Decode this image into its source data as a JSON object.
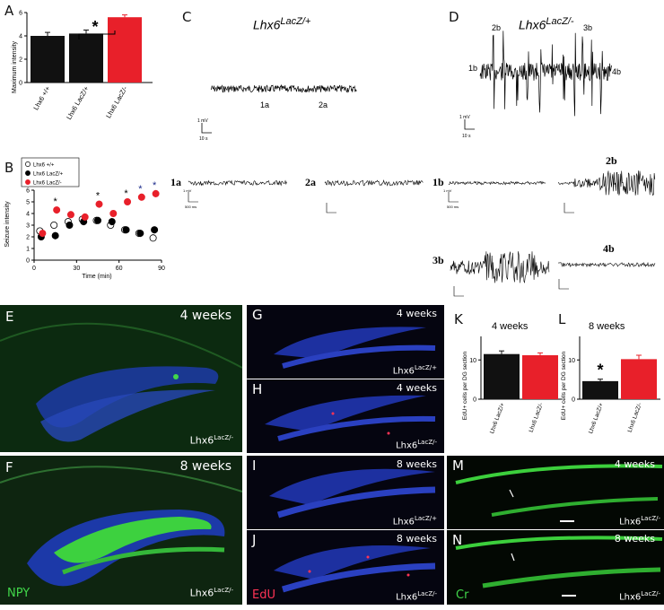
{
  "panels": {
    "A": "A",
    "B": "B",
    "C": "C",
    "D": "D",
    "E": "E",
    "F": "F",
    "G": "G",
    "H": "H",
    "I": "I",
    "J": "J",
    "K": "K",
    "L": "L",
    "M": "M",
    "N": "N"
  },
  "panel_C": {
    "genotype": "Lhx6",
    "genotype_sup": "LacZ/+",
    "markers": [
      "1a",
      "2a"
    ],
    "scale_y": "1 mV",
    "scale_x": "10 s"
  },
  "panel_D": {
    "genotype": "Lhx6",
    "genotype_sup": "LacZ/-",
    "markers": [
      "1b",
      "2b",
      "3b",
      "4b"
    ],
    "scale_y": "1 mV",
    "scale_x": "10 s"
  },
  "traces": {
    "labels": [
      "1a",
      "2a",
      "1b",
      "2b",
      "3b",
      "4b"
    ],
    "scale_y": "1 mV",
    "scale_x": "500 ms"
  },
  "micrographs": {
    "E": {
      "age": "4 weeks",
      "genotype": "Lhx6",
      "sup": "LacZ/-"
    },
    "F": {
      "age": "8 weeks",
      "genotype": "Lhx6",
      "sup": "LacZ/-",
      "stain": "NPY"
    },
    "G": {
      "age": "4 weeks",
      "genotype": "Lhx6",
      "sup": "LacZ/+"
    },
    "H": {
      "age": "4 weeks",
      "genotype": "Lhx6",
      "sup": "LacZ/-"
    },
    "I": {
      "age": "8 weeks",
      "genotype": "Lhx6",
      "sup": "LacZ/+"
    },
    "J": {
      "age": "8 weeks",
      "genotype": "Lhx6",
      "sup": "LacZ/-",
      "stain": "EdU"
    },
    "M": {
      "age": "4 weeks",
      "genotype": "Lhx6",
      "sup": "LacZ/-"
    },
    "N": {
      "age": "8 weeks",
      "genotype": "Lhx6",
      "sup": "LacZ/-",
      "stain": "Cr"
    }
  },
  "colors": {
    "black_bar": "#111111",
    "red": "#e8202a",
    "dapi": "#3346c8",
    "npy": "#38c23a",
    "edu": "#ff3355"
  },
  "chart_data": [
    {
      "panel": "A",
      "type": "bar",
      "categories": [
        "Lhx6 +/+",
        "Lhx6 LacZ/+",
        "Lhx6 LacZ/-"
      ],
      "values": [
        4.0,
        4.2,
        5.6
      ],
      "errors": [
        0.3,
        0.3,
        0.2
      ],
      "ylabel": "Maximum intensity",
      "yticks": [
        "0",
        "2",
        "4",
        "6"
      ],
      "ylim": [
        0,
        6
      ],
      "significance": "*"
    },
    {
      "panel": "B",
      "type": "line",
      "xlabel": "Time (min)",
      "ylabel": "Seizure intensity",
      "xticks": [
        "0",
        "30",
        "60",
        "90"
      ],
      "yticks": [
        "0",
        "1",
        "2",
        "3",
        "4",
        "5",
        "6"
      ],
      "xlim": [
        0,
        90
      ],
      "ylim": [
        0,
        6
      ],
      "legend": [
        "Lhx6 +/+",
        "Lhx6 LacZ/+",
        "Lhx6 LacZ/-"
      ],
      "legend_position": "top-left",
      "series": [
        {
          "name": "Lhx6 +/+",
          "x": [
            5,
            15,
            25,
            35,
            45,
            55,
            65,
            75,
            85
          ],
          "y": [
            2.5,
            3.0,
            3.3,
            3.5,
            3.4,
            3.0,
            2.6,
            2.3,
            1.9
          ]
        },
        {
          "name": "Lhx6 LacZ/+",
          "x": [
            5,
            15,
            25,
            35,
            45,
            55,
            65,
            75,
            85
          ],
          "y": [
            2.0,
            2.1,
            3.0,
            3.3,
            3.4,
            3.3,
            2.6,
            2.3,
            2.6
          ]
        },
        {
          "name": "Lhx6 LacZ/-",
          "x": [
            5,
            15,
            25,
            35,
            45,
            55,
            65,
            75,
            85
          ],
          "y": [
            2.3,
            4.3,
            3.9,
            3.7,
            4.8,
            4.0,
            5.0,
            5.4,
            5.7
          ]
        }
      ],
      "significance_at_x": [
        15,
        45,
        65,
        75,
        85
      ],
      "significance": "*"
    },
    {
      "panel": "K",
      "type": "bar",
      "title": "4 weeks",
      "categories": [
        "Lhx6 LacZ/+",
        "Lhx6 LacZ/-"
      ],
      "values": [
        11.5,
        11.2
      ],
      "errors": [
        0.8,
        0.6
      ],
      "ylabel": "EdU+ cells per DG section",
      "yticks": [
        "0",
        "10"
      ],
      "ylim": [
        0,
        16
      ]
    },
    {
      "panel": "L",
      "type": "bar",
      "title": "8 weeks",
      "categories": [
        "Lhx6 LacZ/+",
        "Lhx6 LacZ/-"
      ],
      "values": [
        4.6,
        10.2
      ],
      "errors": [
        0.5,
        1.0
      ],
      "ylabel": "EdU+ cells per DG section",
      "yticks": [
        "0",
        "10"
      ],
      "ylim": [
        0,
        16
      ],
      "significance": "*"
    }
  ]
}
